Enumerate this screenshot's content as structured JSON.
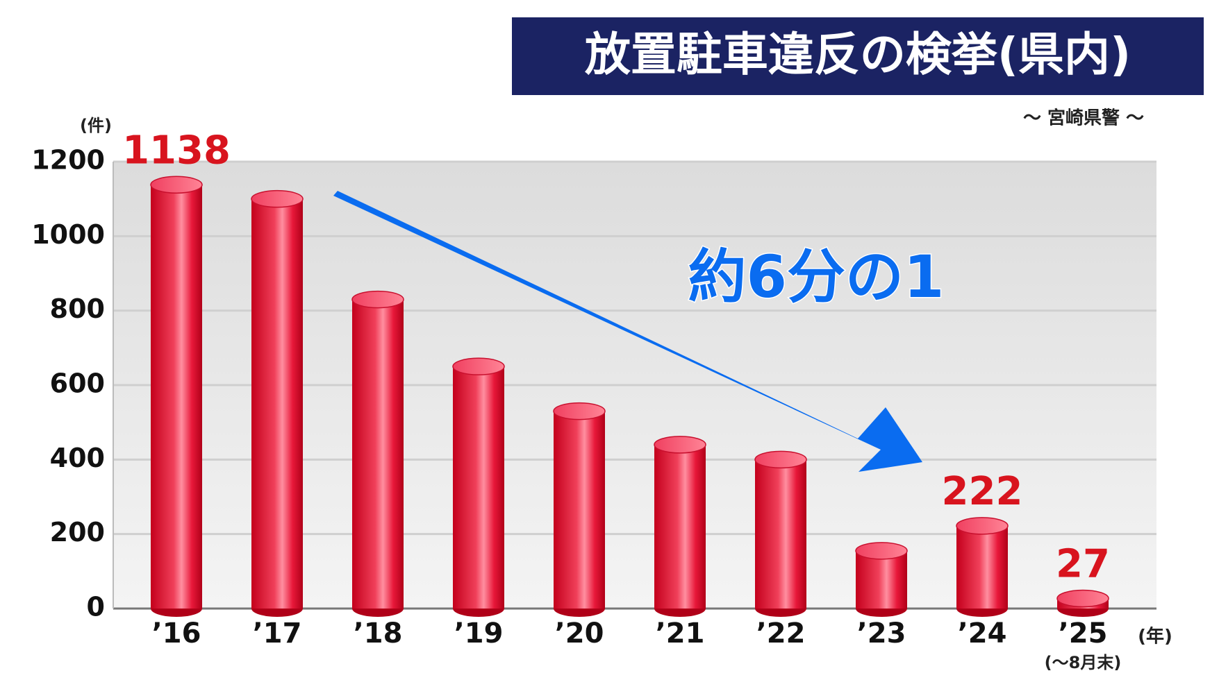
{
  "chart_data": {
    "type": "bar",
    "title": "放置駐車違反の検挙(県内)",
    "subtitle": "～ 宮崎県警 ～",
    "y_unit": "(件)",
    "x_unit": "(年)",
    "categories": [
      "’16",
      "’17",
      "’18",
      "’19",
      "’20",
      "’21",
      "’22",
      "’23",
      "’24",
      "’25"
    ],
    "category_note": {
      "index": 9,
      "text": "(～8月末)"
    },
    "values": [
      1138,
      1100,
      830,
      650,
      530,
      440,
      400,
      155,
      222,
      27
    ],
    "value_labels": [
      "1138",
      null,
      null,
      null,
      null,
      null,
      null,
      null,
      "222",
      "27"
    ],
    "color": "#e0102a",
    "annotation": "約6分の1",
    "ylim": [
      0,
      1200
    ],
    "yticks": [
      0,
      200,
      400,
      600,
      800,
      1000,
      1200
    ],
    "grid": true
  }
}
